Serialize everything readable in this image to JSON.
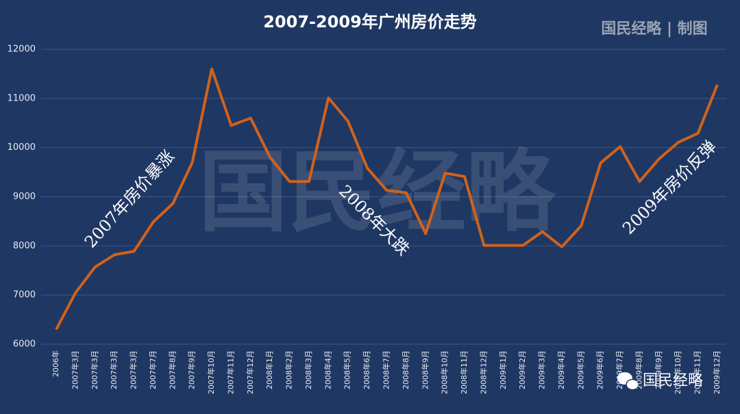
{
  "chart_data": {
    "type": "line",
    "title": "2007-2009年广州房价走势",
    "credit": "国民经略 | 制图",
    "watermark": "国民经略",
    "wechat_label": "国民经略",
    "annotations": [
      "2007年房价暴涨",
      "2008年大跌",
      "2009年房价反弹"
    ],
    "categories": [
      "2006年",
      "2007年3月",
      "2007年3月",
      "2007年3月",
      "2007年3月",
      "2007年7月",
      "2007年8月",
      "2007年9月",
      "2007年10月",
      "2007年11月",
      "2007年12月",
      "2008年1月",
      "2008年2月",
      "2008年3月",
      "2008年4月",
      "2008年5月",
      "2008年6月",
      "2008年7月",
      "2008年8月",
      "2008年9月",
      "2008年10月",
      "2008年11月",
      "2008年12月",
      "2009年1月",
      "2009年2月",
      "2009年3月",
      "2009年4月",
      "2009年5月",
      "2009年6月",
      "2009年7月",
      "2009年8月",
      "2009年9月",
      "2009年10月",
      "2009年11月",
      "2009年12月"
    ],
    "values": [
      6300,
      7050,
      7570,
      7820,
      7890,
      8490,
      8860,
      9700,
      11600,
      10450,
      10600,
      9800,
      9310,
      9310,
      11010,
      10540,
      9580,
      9130,
      9080,
      8250,
      9480,
      9410,
      8010,
      8010,
      8010,
      8290,
      7980,
      8410,
      9690,
      10020,
      9310,
      9770,
      10110,
      10290,
      11280
    ],
    "color": "#d0621c",
    "ylim": [
      6000,
      12000
    ],
    "yticks": [
      6000,
      7000,
      8000,
      9000,
      10000,
      11000,
      12000
    ],
    "grid": true
  }
}
